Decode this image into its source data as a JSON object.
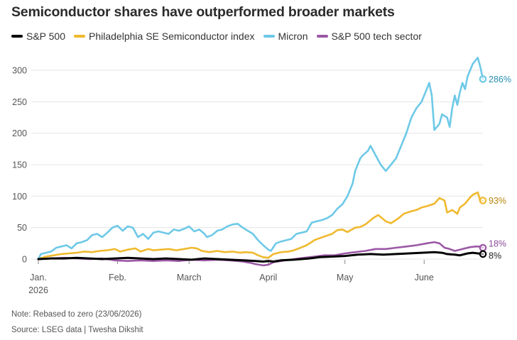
{
  "title": "Semiconductor shares have outperformed broader markets",
  "note": "Note: Rebased to zero (23/06/2026)",
  "source": "Source: LSEG data | Twesha Dikshit",
  "chart_data": {
    "type": "line",
    "title": "Semiconductor shares have outperformed broader markets",
    "xlabel": "",
    "ylabel": "",
    "ylim": [
      -10,
      325
    ],
    "yticks": [
      0,
      50,
      100,
      150,
      200,
      250,
      300
    ],
    "x_ticks": [
      {
        "day": 0,
        "label": "Jan.",
        "sublabel": "2026"
      },
      {
        "day": 31,
        "label": "Feb.",
        "sublabel": ""
      },
      {
        "day": 59,
        "label": "March",
        "sublabel": ""
      },
      {
        "day": 90,
        "label": "April",
        "sublabel": ""
      },
      {
        "day": 120,
        "label": "May",
        "sublabel": ""
      },
      {
        "day": 151,
        "label": "June",
        "sublabel": ""
      }
    ],
    "x_domain": [
      0,
      174
    ],
    "grid": "horizontal",
    "legend_position": "top-left",
    "series": [
      {
        "name": "S&P 500",
        "color": "#000000",
        "end_label": "8%",
        "points": [
          [
            0,
            0
          ],
          [
            5,
            1
          ],
          [
            10,
            1
          ],
          [
            15,
            2
          ],
          [
            20,
            1
          ],
          [
            25,
            0
          ],
          [
            30,
            1
          ],
          [
            35,
            2
          ],
          [
            40,
            1
          ],
          [
            45,
            0
          ],
          [
            50,
            1
          ],
          [
            55,
            0
          ],
          [
            60,
            -1
          ],
          [
            65,
            1
          ],
          [
            70,
            0
          ],
          [
            75,
            -1
          ],
          [
            80,
            -2
          ],
          [
            85,
            -3
          ],
          [
            88,
            -4
          ],
          [
            90,
            -3
          ],
          [
            92,
            -4
          ],
          [
            95,
            -2
          ],
          [
            100,
            -1
          ],
          [
            103,
            0
          ],
          [
            106,
            1
          ],
          [
            110,
            3
          ],
          [
            115,
            4
          ],
          [
            120,
            5
          ],
          [
            125,
            7
          ],
          [
            130,
            8
          ],
          [
            135,
            7
          ],
          [
            140,
            8
          ],
          [
            145,
            9
          ],
          [
            150,
            10
          ],
          [
            155,
            11
          ],
          [
            158,
            10
          ],
          [
            160,
            8
          ],
          [
            163,
            7
          ],
          [
            165,
            6
          ],
          [
            168,
            9
          ],
          [
            170,
            10
          ],
          [
            172,
            9
          ],
          [
            174,
            8
          ]
        ]
      },
      {
        "name": "Philadelphia SE Semiconductor index",
        "color": "#f0b92e",
        "end_label": "93%",
        "points": [
          [
            0,
            0
          ],
          [
            3,
            4
          ],
          [
            6,
            6
          ],
          [
            9,
            8
          ],
          [
            12,
            9
          ],
          [
            15,
            10
          ],
          [
            18,
            12
          ],
          [
            21,
            11
          ],
          [
            24,
            13
          ],
          [
            27,
            14
          ],
          [
            30,
            16
          ],
          [
            32,
            12
          ],
          [
            35,
            15
          ],
          [
            38,
            17
          ],
          [
            40,
            12
          ],
          [
            43,
            16
          ],
          [
            45,
            14
          ],
          [
            48,
            15
          ],
          [
            51,
            16
          ],
          [
            54,
            14
          ],
          [
            57,
            16
          ],
          [
            60,
            18
          ],
          [
            62,
            17
          ],
          [
            64,
            13
          ],
          [
            67,
            11
          ],
          [
            70,
            13
          ],
          [
            73,
            11
          ],
          [
            76,
            12
          ],
          [
            79,
            10
          ],
          [
            81,
            11
          ],
          [
            84,
            10
          ],
          [
            86,
            6
          ],
          [
            88,
            3
          ],
          [
            90,
            2
          ],
          [
            92,
            8
          ],
          [
            95,
            11
          ],
          [
            98,
            12
          ],
          [
            100,
            14
          ],
          [
            102,
            17
          ],
          [
            105,
            22
          ],
          [
            108,
            30
          ],
          [
            110,
            33
          ],
          [
            112,
            36
          ],
          [
            115,
            40
          ],
          [
            117,
            46
          ],
          [
            119,
            47
          ],
          [
            121,
            43
          ],
          [
            124,
            50
          ],
          [
            126,
            51
          ],
          [
            128,
            55
          ],
          [
            131,
            65
          ],
          [
            133,
            70
          ],
          [
            136,
            60
          ],
          [
            138,
            57
          ],
          [
            141,
            65
          ],
          [
            143,
            72
          ],
          [
            146,
            76
          ],
          [
            148,
            78
          ],
          [
            150,
            82
          ],
          [
            152,
            84
          ],
          [
            155,
            88
          ],
          [
            157,
            97
          ],
          [
            159,
            93
          ],
          [
            160,
            74
          ],
          [
            162,
            78
          ],
          [
            164,
            72
          ],
          [
            165,
            82
          ],
          [
            167,
            88
          ],
          [
            169,
            98
          ],
          [
            170,
            102
          ],
          [
            171,
            104
          ],
          [
            172,
            106
          ],
          [
            173,
            92
          ],
          [
            174,
            93
          ]
        ]
      },
      {
        "name": "Micron",
        "color": "#6ec9e7",
        "end_label": "286%",
        "points": [
          [
            0,
            0
          ],
          [
            1,
            8
          ],
          [
            3,
            10
          ],
          [
            5,
            12
          ],
          [
            7,
            18
          ],
          [
            9,
            20
          ],
          [
            11,
            22
          ],
          [
            13,
            17
          ],
          [
            15,
            25
          ],
          [
            17,
            27
          ],
          [
            19,
            30
          ],
          [
            21,
            38
          ],
          [
            23,
            40
          ],
          [
            25,
            35
          ],
          [
            27,
            42
          ],
          [
            29,
            50
          ],
          [
            31,
            53
          ],
          [
            33,
            45
          ],
          [
            35,
            52
          ],
          [
            37,
            50
          ],
          [
            39,
            35
          ],
          [
            41,
            40
          ],
          [
            43,
            32
          ],
          [
            45,
            42
          ],
          [
            47,
            44
          ],
          [
            49,
            42
          ],
          [
            51,
            40
          ],
          [
            53,
            47
          ],
          [
            55,
            45
          ],
          [
            57,
            48
          ],
          [
            59,
            52
          ],
          [
            61,
            44
          ],
          [
            63,
            47
          ],
          [
            65,
            40
          ],
          [
            66,
            35
          ],
          [
            68,
            38
          ],
          [
            70,
            45
          ],
          [
            72,
            47
          ],
          [
            74,
            52
          ],
          [
            76,
            55
          ],
          [
            78,
            56
          ],
          [
            80,
            50
          ],
          [
            82,
            45
          ],
          [
            84,
            40
          ],
          [
            86,
            30
          ],
          [
            88,
            22
          ],
          [
            90,
            15
          ],
          [
            91,
            13
          ],
          [
            93,
            25
          ],
          [
            95,
            28
          ],
          [
            97,
            30
          ],
          [
            99,
            32
          ],
          [
            101,
            40
          ],
          [
            103,
            42
          ],
          [
            105,
            44
          ],
          [
            107,
            58
          ],
          [
            109,
            60
          ],
          [
            111,
            62
          ],
          [
            113,
            65
          ],
          [
            115,
            70
          ],
          [
            117,
            80
          ],
          [
            119,
            87
          ],
          [
            121,
            100
          ],
          [
            123,
            120
          ],
          [
            124,
            140
          ],
          [
            126,
            160
          ],
          [
            127,
            165
          ],
          [
            129,
            172
          ],
          [
            130,
            180
          ],
          [
            132,
            165
          ],
          [
            134,
            150
          ],
          [
            136,
            140
          ],
          [
            138,
            150
          ],
          [
            140,
            160
          ],
          [
            142,
            180
          ],
          [
            144,
            200
          ],
          [
            146,
            225
          ],
          [
            148,
            240
          ],
          [
            150,
            250
          ],
          [
            152,
            270
          ],
          [
            153,
            280
          ],
          [
            154,
            260
          ],
          [
            155,
            205
          ],
          [
            157,
            215
          ],
          [
            158,
            230
          ],
          [
            160,
            225
          ],
          [
            161,
            210
          ],
          [
            162,
            240
          ],
          [
            163,
            260
          ],
          [
            164,
            245
          ],
          [
            165,
            265
          ],
          [
            166,
            280
          ],
          [
            167,
            270
          ],
          [
            168,
            290
          ],
          [
            169,
            300
          ],
          [
            170,
            310
          ],
          [
            171,
            315
          ],
          [
            172,
            320
          ],
          [
            173,
            305
          ],
          [
            174,
            286
          ]
        ]
      },
      {
        "name": "S&P 500 tech sector",
        "color": "#9b58a5",
        "end_label": "18%",
        "points": [
          [
            0,
            0
          ],
          [
            5,
            1
          ],
          [
            10,
            2
          ],
          [
            15,
            1
          ],
          [
            20,
            0
          ],
          [
            25,
            1
          ],
          [
            30,
            -2
          ],
          [
            35,
            -3
          ],
          [
            40,
            -2
          ],
          [
            45,
            -3
          ],
          [
            50,
            -2
          ],
          [
            55,
            -3
          ],
          [
            60,
            -1
          ],
          [
            65,
            -2
          ],
          [
            70,
            -1
          ],
          [
            75,
            -2
          ],
          [
            80,
            -4
          ],
          [
            83,
            -6
          ],
          [
            85,
            -8
          ],
          [
            88,
            -10
          ],
          [
            90,
            -9
          ],
          [
            92,
            -5
          ],
          [
            95,
            -3
          ],
          [
            100,
            0
          ],
          [
            104,
            2
          ],
          [
            108,
            4
          ],
          [
            112,
            6
          ],
          [
            116,
            6
          ],
          [
            120,
            9
          ],
          [
            124,
            11
          ],
          [
            128,
            13
          ],
          [
            132,
            16
          ],
          [
            136,
            16
          ],
          [
            140,
            18
          ],
          [
            144,
            20
          ],
          [
            148,
            22
          ],
          [
            152,
            25
          ],
          [
            155,
            27
          ],
          [
            157,
            25
          ],
          [
            159,
            18
          ],
          [
            161,
            16
          ],
          [
            163,
            13
          ],
          [
            165,
            15
          ],
          [
            167,
            17
          ],
          [
            169,
            19
          ],
          [
            171,
            20
          ],
          [
            173,
            20
          ],
          [
            174,
            18
          ]
        ]
      }
    ]
  }
}
